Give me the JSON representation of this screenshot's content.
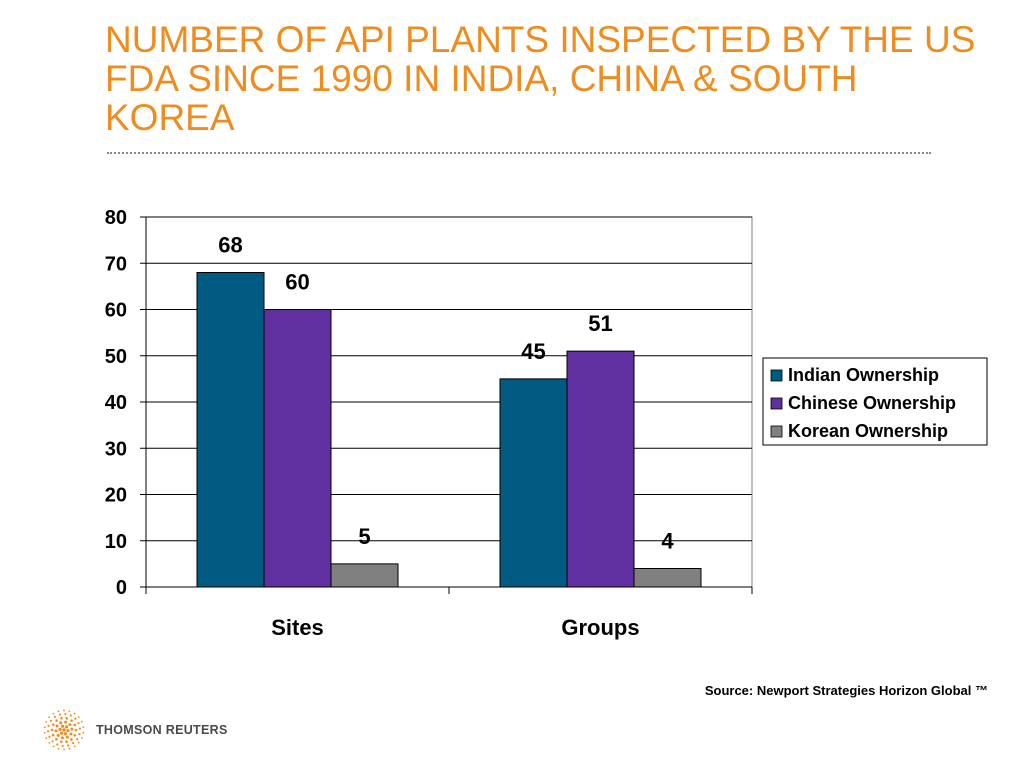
{
  "title": "NUMBER OF API PLANTS INSPECTED BY THE US FDA SINCE 1990 IN INDIA, CHINA & SOUTH KOREA",
  "source": "Source: Newport Strategies Horizon Global ™",
  "logo": {
    "text": "THOMSON REUTERS",
    "icon": "thomson-reuters-sphere-icon"
  },
  "colors": {
    "title": "#f08c1e",
    "indian": "#005a82",
    "chinese": "#6030a0",
    "korean": "#808080"
  },
  "chart_data": {
    "type": "bar",
    "categories": [
      "Sites",
      "Groups"
    ],
    "series": [
      {
        "name": "Indian Ownership",
        "values": [
          68,
          45
        ],
        "color": "#005a82"
      },
      {
        "name": "Chinese Ownership",
        "values": [
          60,
          51
        ],
        "color": "#6030a0"
      },
      {
        "name": "Korean Ownership",
        "values": [
          5,
          4
        ],
        "color": "#808080"
      }
    ],
    "yticks": [
      "0",
      "10",
      "20",
      "30",
      "40",
      "50",
      "60",
      "70",
      "80"
    ],
    "ylim": [
      0,
      80
    ],
    "grid": true,
    "legend": "right",
    "data_labels": true
  }
}
